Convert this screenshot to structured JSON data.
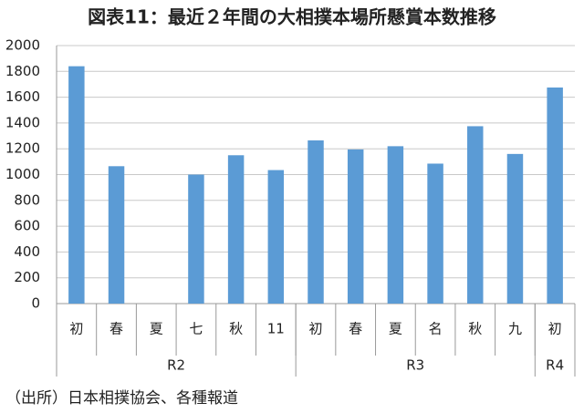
{
  "chart_data": {
    "type": "bar",
    "title": "図表11：最近２年間の大相撲本場所懸賞本数推移",
    "categories": [
      "初",
      "春",
      "夏",
      "七",
      "秋",
      "11",
      "初",
      "春",
      "夏",
      "名",
      "秋",
      "九",
      "初"
    ],
    "groups": [
      {
        "label": "R2",
        "span": 6
      },
      {
        "label": "R3",
        "span": 6
      },
      {
        "label": "R4",
        "span": 1
      }
    ],
    "values": [
      1840,
      1065,
      null,
      1000,
      1150,
      1035,
      1265,
      1195,
      1220,
      1085,
      1375,
      1160,
      1675
    ],
    "color": "#5b9bd5",
    "ylim": [
      0,
      2000
    ],
    "yticks": [
      0,
      200,
      400,
      600,
      800,
      1000,
      1200,
      1400,
      1600,
      1800,
      2000
    ],
    "grid": true,
    "note": "（出所）日本相撲協会、各種報道"
  }
}
